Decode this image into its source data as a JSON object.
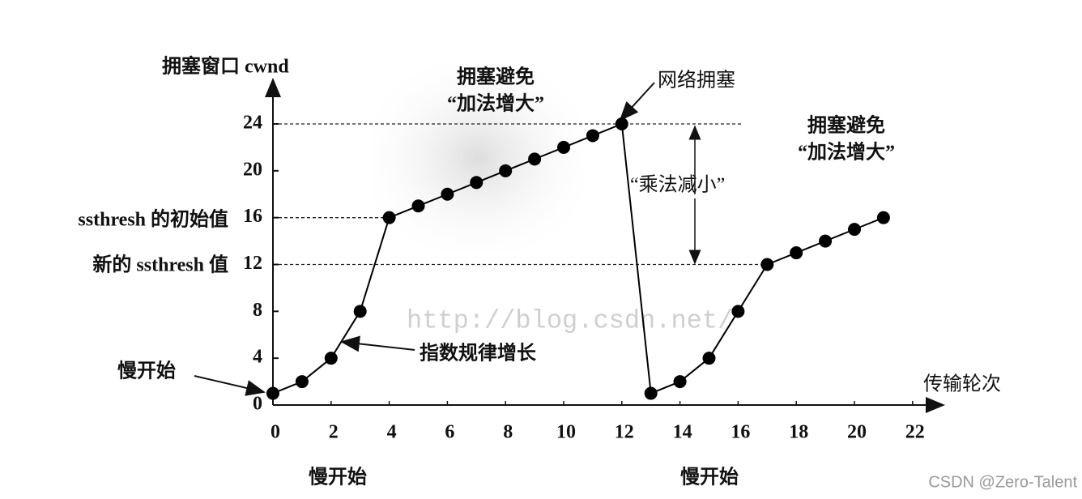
{
  "chart_data": {
    "type": "line",
    "y_label": "拥塞窗口 cwnd",
    "x_label": "传输轮次",
    "x": [
      0,
      1,
      2,
      3,
      4,
      5,
      6,
      7,
      8,
      9,
      10,
      11,
      12,
      13,
      14,
      15,
      16,
      17,
      18,
      19,
      20,
      21
    ],
    "series": [
      {
        "color": "#000000",
        "values": [
          1,
          2,
          4,
          8,
          16,
          17,
          18,
          19,
          20,
          21,
          22,
          23,
          24,
          1,
          2,
          4,
          8,
          12,
          13,
          14,
          15,
          16
        ]
      }
    ],
    "xlim": [
      0,
      23
    ],
    "ylim": [
      0,
      27.5
    ],
    "xticks": [
      0,
      2,
      4,
      6,
      8,
      10,
      12,
      14,
      16,
      18,
      20,
      22
    ],
    "yticks": [
      0,
      4,
      8,
      12,
      16,
      20,
      24
    ],
    "annotations": [
      "拥塞避免",
      "“加法增大”",
      "网络拥塞",
      "“乘法减小”",
      "慢开始",
      "指数规律增长",
      "拥塞避免",
      "“加法增大”",
      "慢开始",
      "慢开始",
      "ssthresh 的初始值",
      "新的 ssthresh 值",
      "http://blog.csdn.net/",
      "CSDN @Zero-Talent"
    ]
  }
}
